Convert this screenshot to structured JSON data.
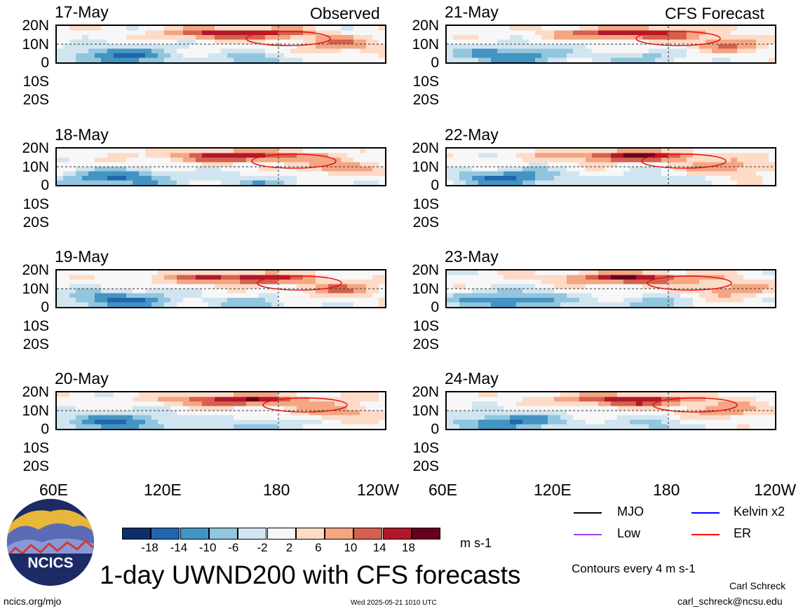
{
  "headers": {
    "left": "Observed",
    "right": "CFS Forecast"
  },
  "chart_data": {
    "type": "heatmap",
    "title": "1-day UWND200 with CFS forecasts",
    "units": "m s-1",
    "panels_left": [
      "17-May",
      "18-May",
      "19-May",
      "20-May"
    ],
    "panels_right": [
      "21-May",
      "22-May",
      "23-May",
      "24-May"
    ],
    "lat_ticks": [
      "20N",
      "10N",
      "0",
      "10S",
      "20S"
    ],
    "lon_ticks": [
      "60E",
      "120E",
      "180",
      "120W"
    ],
    "colorbar_labels": [
      "-18",
      "-14",
      "-10",
      "-6",
      "-2",
      "2",
      "6",
      "10",
      "14",
      "18"
    ],
    "colorbar_colors": [
      "#0a2f6b",
      "#2166ac",
      "#4393c3",
      "#92c5de",
      "#d1e5f0",
      "#f7f7f7",
      "#fddbc7",
      "#f4a582",
      "#d6604d",
      "#b2182b",
      "#67001f"
    ]
  },
  "legend": {
    "items": [
      {
        "label": "MJO",
        "color": "#000000"
      },
      {
        "label": "Kelvin x2",
        "color": "#0000ff"
      },
      {
        "label": "Low",
        "color": "#a040f0"
      },
      {
        "label": "ER",
        "color": "#ff0000"
      }
    ],
    "contour_note": "Contours every 4 m s-1"
  },
  "footer": {
    "site": "ncics.org/mjo",
    "timestamp": "Wed 2025-05-21 1010 UTC",
    "author": "Carl Schreck",
    "email": "carl_schreck@ncsu.edu"
  },
  "logo": {
    "text": "NCICS"
  }
}
